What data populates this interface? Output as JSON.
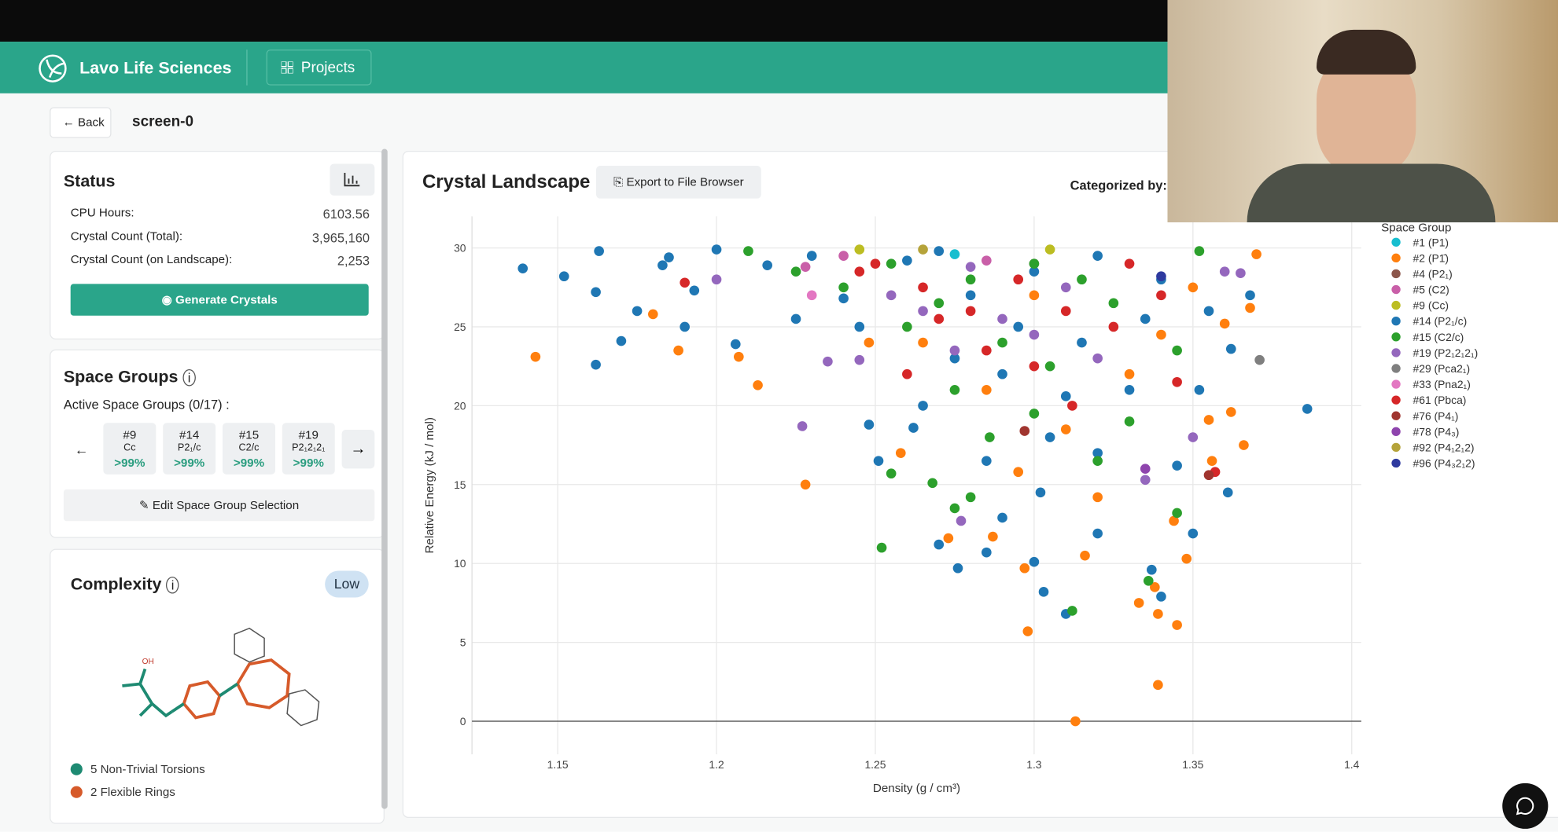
{
  "header": {
    "brand": "Lavo Life Sciences",
    "nav": "Projects"
  },
  "toolbar": {
    "back": "Back",
    "title": "screen-0"
  },
  "status": {
    "title": "Status",
    "rows": [
      [
        "CPU Hours:",
        "6103.56"
      ],
      [
        "Crystal Count (Total):",
        "3,965,160"
      ],
      [
        "Crystal Count (on Landscape):",
        "2,253"
      ]
    ],
    "button": "Generate Crystals"
  },
  "space_groups": {
    "title": "Space Groups",
    "active": "Active Space Groups (0/17) :",
    "chips": [
      {
        "id": "#9",
        "symbol": "Cc",
        "pct": ">99%"
      },
      {
        "id": "#14",
        "symbol": "P2₁/c",
        "pct": ">99%"
      },
      {
        "id": "#15",
        "symbol": "C2/c",
        "pct": ">99%"
      },
      {
        "id": "#19",
        "symbol": "P2₁2₁2₁",
        "pct": ">99%"
      }
    ],
    "edit": "Edit Space Group Selection"
  },
  "complexity": {
    "title": "Complexity",
    "level": "Low",
    "molecule_label": "OH",
    "items": [
      "5 Non-Trivial Torsions",
      "2 Flexible Rings"
    ]
  },
  "panel": {
    "title": "Crystal Landscape",
    "export": "Export to File Browser",
    "categorized": "Categorized by:"
  },
  "chart_data": {
    "type": "scatter",
    "x_label": "Density (g / cm³)",
    "y_label": "Relative Energy (kJ / mol)",
    "legend_title": "Space Group",
    "xlim": [
      1.123,
      1.403
    ],
    "ylim": [
      -2.1,
      32
    ],
    "xticks": [
      1.15,
      1.2,
      1.25,
      1.3,
      1.35,
      1.4
    ],
    "yticks": [
      0,
      5,
      10,
      15,
      20,
      25,
      30
    ],
    "grid": true,
    "zeroline": true,
    "series": [
      {
        "name": "#1 (P1)",
        "color": "#17becf",
        "x": [
          1.275
        ],
        "y": [
          29.6
        ]
      },
      {
        "name": "#2 (P1̄)",
        "color": "#ff7f0e",
        "x": [
          1.143,
          1.18,
          1.188,
          1.213,
          1.207,
          1.228,
          1.258,
          1.273,
          1.287,
          1.297,
          1.298,
          1.313,
          1.316,
          1.333,
          1.338,
          1.339,
          1.345,
          1.339,
          1.348,
          1.344,
          1.356,
          1.355,
          1.362,
          1.366,
          1.37,
          1.368,
          1.35,
          1.33,
          1.31,
          1.285,
          1.265,
          1.3,
          1.34,
          1.248,
          1.32,
          1.295,
          1.36
        ],
        "y": [
          23.1,
          25.8,
          23.5,
          21.3,
          23.1,
          15.0,
          17.0,
          11.6,
          11.7,
          9.7,
          5.7,
          0.0,
          10.5,
          7.5,
          8.5,
          6.8,
          6.1,
          2.3,
          10.3,
          12.7,
          16.5,
          19.1,
          19.6,
          17.5,
          29.6,
          26.2,
          27.5,
          22.0,
          18.5,
          21.0,
          24.0,
          27.0,
          24.5,
          24.0,
          14.2,
          15.8,
          25.2
        ]
      },
      {
        "name": "#4 (P2₁)",
        "color": "#8c564b",
        "x": [
          1.3
        ],
        "y": [
          29.0
        ]
      },
      {
        "name": "#5 (C2)",
        "color": "#c95fa8",
        "x": [
          1.24,
          1.285,
          1.228
        ],
        "y": [
          29.5,
          29.2,
          28.8
        ]
      },
      {
        "name": "#9 (Cc)",
        "color": "#bcbd22",
        "x": [
          1.245,
          1.305
        ],
        "y": [
          29.9,
          29.9
        ]
      },
      {
        "name": "#14 (P2₁/c)",
        "color": "#1f77b4",
        "x": [
          1.139,
          1.152,
          1.162,
          1.163,
          1.162,
          1.17,
          1.175,
          1.183,
          1.185,
          1.19,
          1.193,
          1.2,
          1.206,
          1.216,
          1.225,
          1.24,
          1.248,
          1.251,
          1.262,
          1.27,
          1.276,
          1.285,
          1.29,
          1.3,
          1.303,
          1.31,
          1.302,
          1.32,
          1.337,
          1.34,
          1.35,
          1.361,
          1.386,
          1.345,
          1.33,
          1.31,
          1.295,
          1.28,
          1.26,
          1.27,
          1.3,
          1.32,
          1.34,
          1.355,
          1.368,
          1.362,
          1.352,
          1.29,
          1.275,
          1.305,
          1.32,
          1.285,
          1.265,
          1.245,
          1.23,
          1.315,
          1.335
        ],
        "y": [
          28.7,
          28.2,
          27.2,
          29.8,
          22.6,
          24.1,
          26.0,
          28.9,
          29.4,
          25.0,
          27.3,
          29.9,
          23.9,
          28.9,
          25.5,
          26.8,
          18.8,
          16.5,
          18.6,
          11.2,
          9.7,
          10.7,
          12.9,
          10.1,
          8.2,
          6.8,
          14.5,
          11.9,
          9.6,
          7.9,
          11.9,
          14.5,
          19.8,
          16.2,
          21.0,
          20.6,
          25.0,
          27.0,
          29.2,
          29.8,
          28.5,
          29.5,
          28.0,
          26.0,
          27.0,
          23.6,
          21.0,
          22.0,
          23.0,
          18.0,
          17.0,
          16.5,
          20.0,
          25.0,
          29.5,
          24.0,
          25.5
        ]
      },
      {
        "name": "#15 (C2/c)",
        "color": "#2ca02c",
        "x": [
          1.252,
          1.255,
          1.268,
          1.28,
          1.312,
          1.336,
          1.345,
          1.32,
          1.3,
          1.275,
          1.26,
          1.24,
          1.225,
          1.21,
          1.28,
          1.3,
          1.325,
          1.345,
          1.29,
          1.305,
          1.27,
          1.255,
          1.33,
          1.315,
          1.286,
          1.352,
          1.275
        ],
        "y": [
          11.0,
          15.7,
          15.1,
          14.2,
          7.0,
          8.9,
          13.2,
          16.5,
          19.5,
          21.0,
          25.0,
          27.5,
          28.5,
          29.8,
          28.0,
          29.0,
          26.5,
          23.5,
          24.0,
          22.5,
          26.5,
          29.0,
          19.0,
          28.0,
          18.0,
          29.8,
          13.5
        ]
      },
      {
        "name": "#19 (P2₁2₁2₁)",
        "color": "#9467bd",
        "x": [
          1.2,
          1.227,
          1.235,
          1.245,
          1.265,
          1.275,
          1.277,
          1.29,
          1.31,
          1.32,
          1.335,
          1.35,
          1.36,
          1.3,
          1.28,
          1.255,
          1.365
        ],
        "y": [
          28.0,
          18.7,
          22.8,
          22.9,
          26.0,
          23.5,
          12.7,
          25.5,
          27.5,
          23.0,
          15.3,
          18.0,
          28.5,
          24.5,
          28.8,
          27.0,
          28.4
        ]
      },
      {
        "name": "#29 (Pca2₁)",
        "color": "#7f7f7f",
        "x": [
          1.371
        ],
        "y": [
          22.9
        ]
      },
      {
        "name": "#33 (Pna2₁)",
        "color": "#e377c2",
        "x": [
          1.23
        ],
        "y": [
          27.0
        ]
      },
      {
        "name": "#61 (Pbca)",
        "color": "#d62728",
        "x": [
          1.19,
          1.25,
          1.265,
          1.28,
          1.295,
          1.31,
          1.325,
          1.34,
          1.3,
          1.285,
          1.27,
          1.33,
          1.357,
          1.312,
          1.26,
          1.245,
          1.345
        ],
        "y": [
          27.8,
          29.0,
          27.5,
          26.0,
          28.0,
          26.0,
          25.0,
          27.0,
          22.5,
          23.5,
          25.5,
          29.0,
          15.8,
          20.0,
          22.0,
          28.5,
          21.5
        ]
      },
      {
        "name": "#76 (P4₁)",
        "color": "#a0352f",
        "x": [
          1.297,
          1.355
        ],
        "y": [
          18.4,
          15.6
        ]
      },
      {
        "name": "#78 (P4₃)",
        "color": "#8e44ad",
        "x": [
          1.335
        ],
        "y": [
          16.0
        ]
      },
      {
        "name": "#92 (P4₁2₁2)",
        "color": "#b5a33a",
        "x": [
          1.265
        ],
        "y": [
          29.9
        ]
      },
      {
        "name": "#96 (P4₃2₁2)",
        "color": "#2e3a9f",
        "x": [
          1.34
        ],
        "y": [
          28.2
        ]
      }
    ]
  }
}
